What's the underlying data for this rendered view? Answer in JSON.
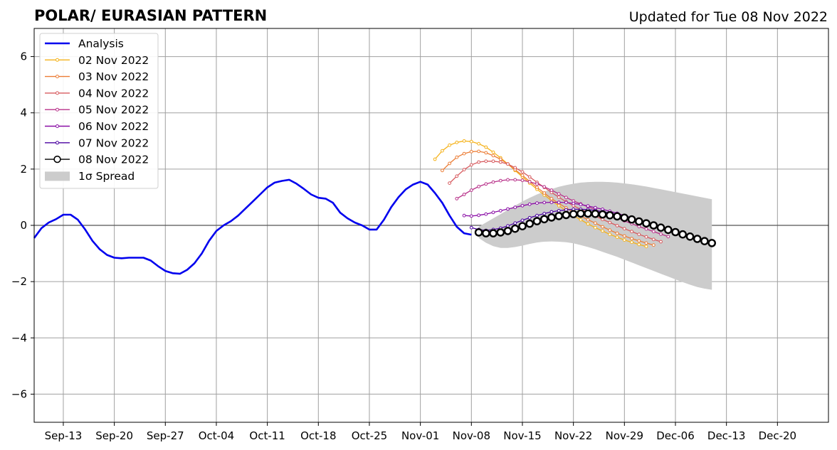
{
  "chart_data": {
    "type": "line",
    "title": "POLAR/ EURASIAN  PATTERN",
    "subtitle": "Updated for Tue 08 Nov 2022",
    "xlabel": "",
    "ylabel": "",
    "ylim": [
      -7,
      7
    ],
    "yticks": [
      -6,
      -4,
      -2,
      0,
      2,
      4,
      6
    ],
    "ytick_labels": [
      "−6",
      "−4",
      "−2",
      "0",
      "2",
      "4",
      "6"
    ],
    "x_domain": [
      "2022-09-09",
      "2022-12-27"
    ],
    "xtick_labels": [
      {
        "date": "2022-09-13",
        "label": "Sep-13"
      },
      {
        "date": "2022-09-20",
        "label": "Sep-20"
      },
      {
        "date": "2022-09-27",
        "label": "Sep-27"
      },
      {
        "date": "2022-10-04",
        "label": "Oct-04"
      },
      {
        "date": "2022-10-11",
        "label": "Oct-11"
      },
      {
        "date": "2022-10-18",
        "label": "Oct-18"
      },
      {
        "date": "2022-10-25",
        "label": "Oct-25"
      },
      {
        "date": "2022-11-01",
        "label": "Nov-01"
      },
      {
        "date": "2022-11-08",
        "label": "Nov-08"
      },
      {
        "date": "2022-11-15",
        "label": "Nov-15"
      },
      {
        "date": "2022-11-22",
        "label": "Nov-22"
      },
      {
        "date": "2022-11-29",
        "label": "Nov-29"
      },
      {
        "date": "2022-12-06",
        "label": "Dec-06"
      },
      {
        "date": "2022-12-13",
        "label": "Dec-13"
      },
      {
        "date": "2022-12-20",
        "label": "Dec-20"
      }
    ],
    "grid": true,
    "legend_position": "top-left",
    "legend_entries": [
      "Analysis",
      "02 Nov 2022",
      "03 Nov 2022",
      "04 Nov 2022",
      "05 Nov 2022",
      "06 Nov 2022",
      "07 Nov 2022",
      "08 Nov 2022",
      "1σ Spread"
    ],
    "analysis": {
      "name": "Analysis",
      "color": "#0000ee",
      "start_date": "2022-09-09",
      "values": [
        -0.45,
        -0.1,
        0.1,
        0.22,
        0.38,
        0.38,
        0.2,
        -0.15,
        -0.55,
        -0.85,
        -1.05,
        -1.15,
        -1.17,
        -1.15,
        -1.15,
        -1.15,
        -1.25,
        -1.45,
        -1.62,
        -1.7,
        -1.72,
        -1.58,
        -1.35,
        -1.0,
        -0.55,
        -0.2,
        0.0,
        0.15,
        0.35,
        0.6,
        0.85,
        1.1,
        1.35,
        1.52,
        1.58,
        1.62,
        1.48,
        1.3,
        1.1,
        0.98,
        0.95,
        0.8,
        0.45,
        0.25,
        0.1,
        0.0,
        -0.15,
        -0.15,
        0.2,
        0.65,
        1.0,
        1.28,
        1.45,
        1.55,
        1.45,
        1.15,
        0.8,
        0.35,
        -0.05,
        -0.28,
        -0.33
      ]
    },
    "forecasts": [
      {
        "name": "02 Nov 2022",
        "color": "#f5b21a",
        "start_date": "2022-11-03",
        "values": [
          2.35,
          2.65,
          2.85,
          2.95,
          3.0,
          2.98,
          2.9,
          2.78,
          2.6,
          2.4,
          2.18,
          1.95,
          1.72,
          1.5,
          1.28,
          1.08,
          0.88,
          0.7,
          0.52,
          0.35,
          0.2,
          0.05,
          -0.08,
          -0.2,
          -0.32,
          -0.42,
          -0.52,
          -0.6,
          -0.68,
          -0.75
        ]
      },
      {
        "name": "03 Nov 2022",
        "color": "#ec7d36",
        "start_date": "2022-11-04",
        "values": [
          1.95,
          2.2,
          2.42,
          2.55,
          2.62,
          2.63,
          2.58,
          2.48,
          2.35,
          2.18,
          1.98,
          1.78,
          1.56,
          1.35,
          1.15,
          0.95,
          0.78,
          0.62,
          0.47,
          0.33,
          0.2,
          0.08,
          -0.05,
          -0.17,
          -0.28,
          -0.38,
          -0.47,
          -0.55,
          -0.63,
          -0.7
        ]
      },
      {
        "name": "04 Nov 2022",
        "color": "#d75a5e",
        "start_date": "2022-11-05",
        "values": [
          1.5,
          1.75,
          1.98,
          2.15,
          2.25,
          2.28,
          2.28,
          2.25,
          2.18,
          2.05,
          1.9,
          1.72,
          1.53,
          1.35,
          1.17,
          1.0,
          0.84,
          0.7,
          0.57,
          0.45,
          0.33,
          0.21,
          0.1,
          -0.01,
          -0.12,
          -0.22,
          -0.32,
          -0.41,
          -0.5,
          -0.58
        ]
      },
      {
        "name": "05 Nov 2022",
        "color": "#b8328a",
        "start_date": "2022-11-06",
        "values": [
          0.95,
          1.1,
          1.25,
          1.38,
          1.47,
          1.54,
          1.59,
          1.62,
          1.62,
          1.6,
          1.55,
          1.47,
          1.37,
          1.25,
          1.12,
          0.99,
          0.87,
          0.76,
          0.66,
          0.56,
          0.46,
          0.36,
          0.26,
          0.16,
          0.06,
          -0.04,
          -0.13,
          -0.22,
          -0.31,
          -0.4
        ]
      },
      {
        "name": "06 Nov 2022",
        "color": "#8a0ea6",
        "start_date": "2022-11-07",
        "values": [
          0.35,
          0.33,
          0.36,
          0.4,
          0.46,
          0.52,
          0.58,
          0.64,
          0.7,
          0.75,
          0.79,
          0.81,
          0.82,
          0.82,
          0.81,
          0.78,
          0.74,
          0.69,
          0.63,
          0.57,
          0.5,
          0.43,
          0.35,
          0.27,
          0.19,
          0.1,
          0.02,
          -0.07,
          -0.15,
          -0.23
        ]
      },
      {
        "name": "07 Nov 2022",
        "color": "#4a02a0",
        "start_date": "2022-11-08",
        "values": [
          -0.08,
          -0.15,
          -0.18,
          -0.15,
          -0.1,
          -0.02,
          0.08,
          0.18,
          0.27,
          0.35,
          0.42,
          0.48,
          0.52,
          0.55,
          0.57,
          0.57,
          0.56,
          0.53,
          0.49,
          0.44,
          0.38,
          0.31,
          0.24,
          0.16,
          0.08,
          0.0,
          -0.08,
          -0.16,
          -0.24,
          -0.32
        ]
      },
      {
        "name": "08 Nov 2022",
        "color": "#000000",
        "start_date": "2022-11-09",
        "values": [
          -0.25,
          -0.28,
          -0.28,
          -0.25,
          -0.2,
          -0.12,
          -0.03,
          0.06,
          0.15,
          0.22,
          0.28,
          0.33,
          0.37,
          0.4,
          0.42,
          0.42,
          0.41,
          0.39,
          0.36,
          0.32,
          0.27,
          0.21,
          0.14,
          0.07,
          0.0,
          -0.08,
          -0.16,
          -0.24,
          -0.32,
          -0.4,
          -0.48,
          -0.56,
          -0.63
        ]
      }
    ],
    "spread": {
      "name": "1σ Spread",
      "color": "#cccccc",
      "start_date": "2022-11-09",
      "upper": [
        -0.05,
        0.1,
        0.25,
        0.4,
        0.55,
        0.7,
        0.85,
        0.98,
        1.1,
        1.2,
        1.29,
        1.37,
        1.43,
        1.48,
        1.52,
        1.54,
        1.55,
        1.55,
        1.54,
        1.52,
        1.49,
        1.46,
        1.42,
        1.38,
        1.33,
        1.28,
        1.23,
        1.18,
        1.13,
        1.08,
        1.03,
        0.98,
        0.93
      ],
      "lower": [
        -0.45,
        -0.62,
        -0.74,
        -0.8,
        -0.8,
        -0.77,
        -0.72,
        -0.66,
        -0.61,
        -0.58,
        -0.57,
        -0.58,
        -0.6,
        -0.64,
        -0.7,
        -0.77,
        -0.85,
        -0.94,
        -1.03,
        -1.12,
        -1.22,
        -1.32,
        -1.42,
        -1.52,
        -1.62,
        -1.72,
        -1.82,
        -1.92,
        -2.02,
        -2.11,
        -2.19,
        -2.25,
        -2.29
      ]
    }
  }
}
